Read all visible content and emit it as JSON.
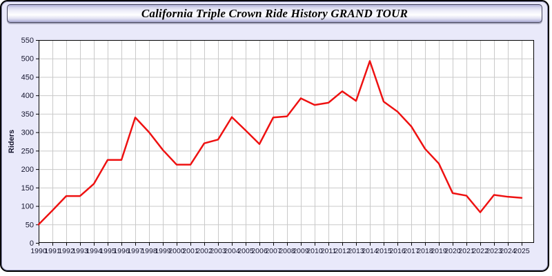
{
  "window": {
    "title": "California Triple Crown Ride History GRAND TOUR"
  },
  "chart_data": {
    "type": "line",
    "title": "California Triple Crown Ride History GRAND TOUR",
    "xlabel": "",
    "ylabel": "Riders",
    "ylim": [
      0,
      550
    ],
    "ytick_step": 50,
    "grid": true,
    "legend_position": "none",
    "line_color": "#ee1111",
    "x": [
      1990,
      1991,
      1992,
      1993,
      1994,
      1995,
      1996,
      1997,
      1998,
      1999,
      2000,
      2001,
      2002,
      2003,
      2004,
      2005,
      2006,
      2007,
      2008,
      2009,
      2010,
      2011,
      2012,
      2013,
      2014,
      2015,
      2016,
      2017,
      2018,
      2019,
      2020,
      2021,
      2022,
      2023,
      2024,
      2025
    ],
    "series": [
      {
        "name": "Riders",
        "values": [
          50,
          88,
          127,
          127,
          160,
          225,
          225,
          340,
          300,
          252,
          212,
          212,
          270,
          280,
          341,
          305,
          268,
          340,
          343,
          392,
          374,
          380,
          411,
          385,
          493,
          383,
          356,
          316,
          255,
          215,
          135,
          128,
          83,
          130,
          125,
          122
        ]
      }
    ]
  },
  "colors": {
    "panel_background": "#e9e9fa",
    "plot_background": "#ffffff",
    "gridline": "#c9c9c9",
    "axis": "#000000",
    "tick_label": "#15152d",
    "line": "#ee1111"
  }
}
